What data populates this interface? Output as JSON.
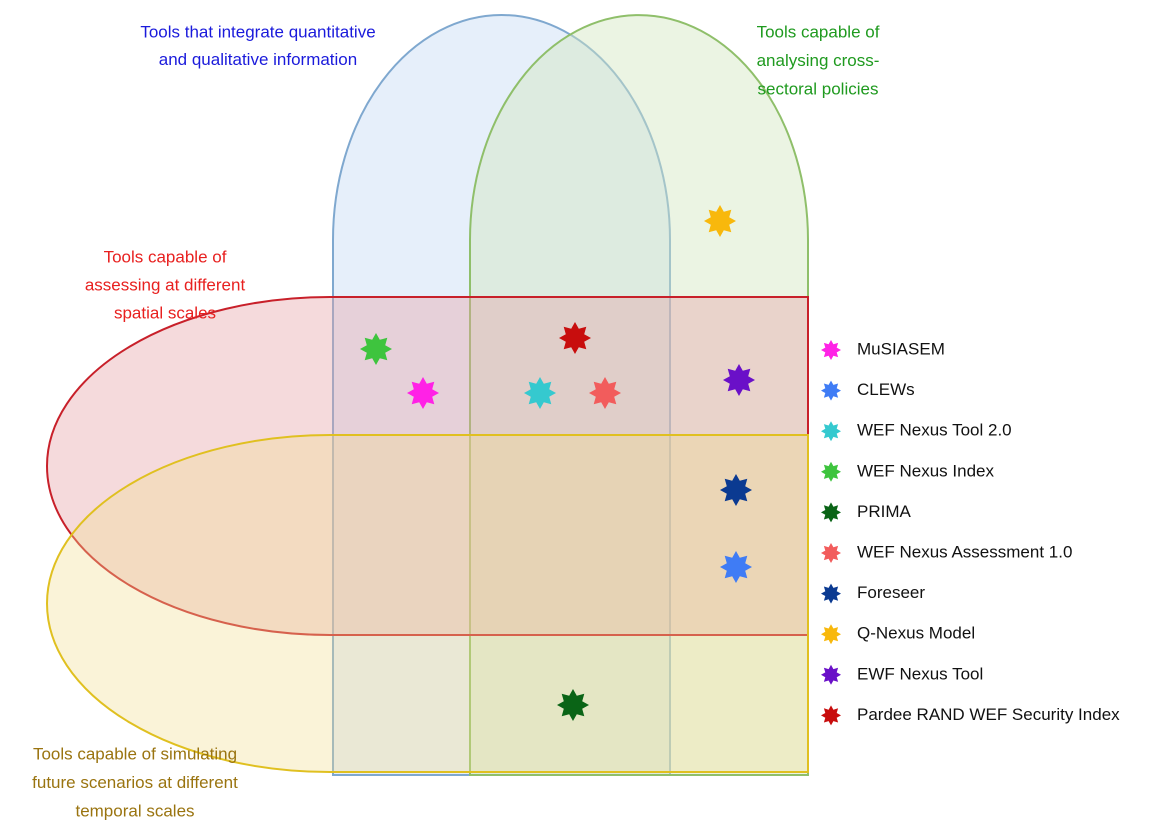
{
  "sets": [
    {
      "label": [
        "Tools that integrate quantitative",
        "and qualitative information"
      ],
      "color": "#1a1adb"
    },
    {
      "label": [
        "Tools capable of",
        "analysing cross-",
        "sectoral policies"
      ],
      "color": "#1f9a1f"
    },
    {
      "label": [
        "Tools capable of",
        "assessing at different",
        "spatial scales"
      ],
      "color": "#e8201f"
    },
    {
      "label": [
        "Tools capable of simulating",
        "future scenarios at different",
        "temporal scales"
      ],
      "color": "#9a7410"
    }
  ],
  "tools": [
    {
      "name": "MuSIASEM",
      "color": "#ff22e6"
    },
    {
      "name": "CLEWs",
      "color": "#3f7cf5"
    },
    {
      "name": "WEF Nexus Tool 2.0",
      "color": "#35c9cf"
    },
    {
      "name": "WEF Nexus Index",
      "color": "#3ec43e"
    },
    {
      "name": "PRIMA",
      "color": "#0a6416"
    },
    {
      "name": "WEF Nexus Assessment 1.0",
      "color": "#f25c5c"
    },
    {
      "name": "Foreseer",
      "color": "#0b3a91"
    },
    {
      "name": "Q-Nexus Model",
      "color": "#f8b80c"
    },
    {
      "name": "EWF Nexus Tool",
      "color": "#6a10c8"
    },
    {
      "name": "Pardee RAND WEF Security Index",
      "color": "#c80d0d"
    }
  ]
}
